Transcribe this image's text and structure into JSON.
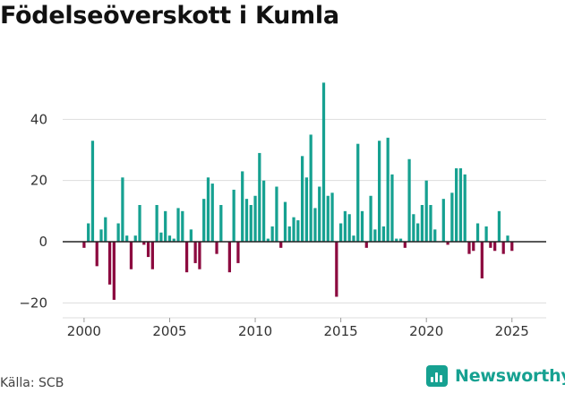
{
  "title": "Födelseöverskott i Kumla",
  "source": "Källa: SCB",
  "brand": {
    "name": "Newsworthy",
    "icon": "bar-chart-icon"
  },
  "colors": {
    "positive": "#16a191",
    "negative": "#8c0a3f",
    "grid": "#dddddd",
    "zero_line": "#222222"
  },
  "chart_data": {
    "type": "bar",
    "title": "Födelseöverskott i Kumla",
    "xlabel": "",
    "ylabel": "",
    "ylim": [
      -24,
      60
    ],
    "y_ticks": [
      -20,
      0,
      20,
      40
    ],
    "x_ticks": [
      2000,
      2005,
      2010,
      2015,
      2020,
      2025
    ],
    "xlim": [
      1998.75,
      2027.0
    ],
    "grid": true,
    "legend": "none",
    "start_year": 2000,
    "periods_per_year": 4,
    "values": [
      -2,
      6,
      33,
      -8,
      4,
      8,
      -14,
      -19,
      6,
      21,
      2,
      -9,
      2,
      12,
      -1,
      -5,
      -9,
      12,
      3,
      10,
      2,
      1,
      11,
      10,
      -10,
      4,
      -7,
      -9,
      14,
      21,
      19,
      -4,
      12,
      0,
      -10,
      17,
      -7,
      23,
      14,
      12,
      15,
      29,
      20,
      1,
      5,
      18,
      -2,
      13,
      5,
      8,
      7,
      28,
      21,
      35,
      11,
      18,
      52,
      15,
      16,
      -18,
      6,
      10,
      9,
      2,
      32,
      10,
      -2,
      15,
      4,
      33,
      5,
      34,
      22,
      1,
      1,
      -2,
      27,
      9,
      6,
      12,
      20,
      12,
      4,
      0,
      14,
      -1,
      16,
      24,
      24,
      22,
      -4,
      -3,
      6,
      -12,
      5,
      -2,
      -3,
      10,
      -4,
      2,
      -3
    ]
  }
}
